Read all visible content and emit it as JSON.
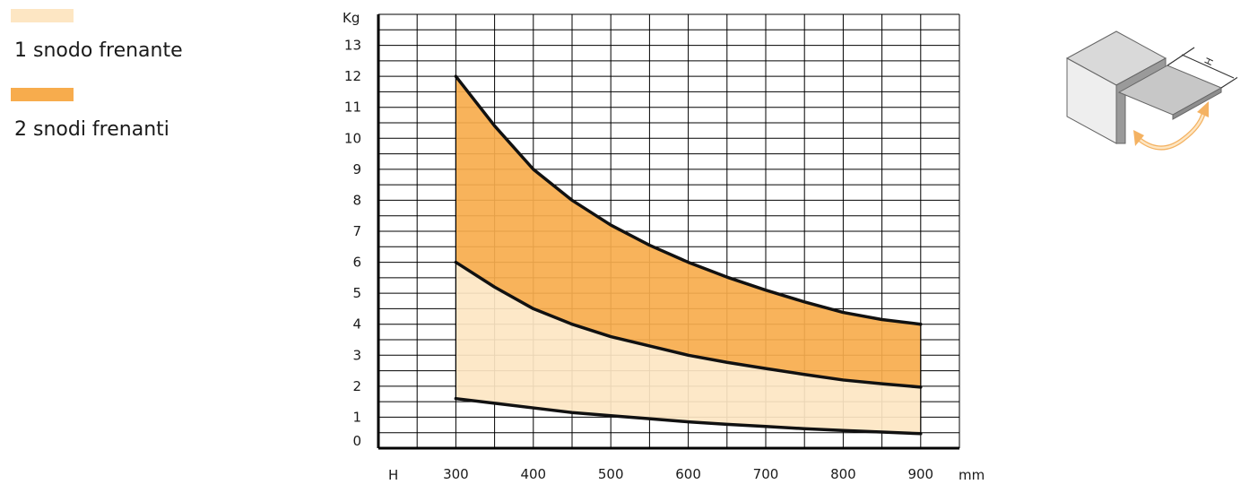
{
  "legend": {
    "items": [
      {
        "label": "1 snodo frenante",
        "color": "#fde6c3"
      },
      {
        "label": "2 snodi frenanti",
        "color": "#f7ac4d"
      }
    ]
  },
  "diagram": {
    "icon": "flap-door-h-dimension-icon",
    "h_label": "H"
  },
  "chart_data": {
    "type": "area",
    "xlabel": "H",
    "x_unit": "mm",
    "ylabel": "Kg",
    "xlim": [
      200,
      950
    ],
    "ylim": [
      0,
      14
    ],
    "x_ticks": [
      300,
      400,
      500,
      600,
      700,
      800,
      900
    ],
    "y_ticks": [
      0,
      1,
      2,
      3,
      4,
      5,
      6,
      7,
      8,
      9,
      10,
      11,
      12,
      13
    ],
    "grid": true,
    "legend_position": "top-left",
    "x": [
      300,
      350,
      400,
      450,
      500,
      550,
      600,
      650,
      700,
      750,
      800,
      850,
      900
    ],
    "series": [
      {
        "name": "1 snodo frenante",
        "color": "#fde6c3",
        "lower": [
          1.6,
          1.45,
          1.3,
          1.15,
          1.05,
          0.95,
          0.85,
          0.77,
          0.7,
          0.63,
          0.57,
          0.52,
          0.47
        ],
        "upper": [
          6.0,
          5.2,
          4.5,
          4.0,
          3.6,
          3.3,
          3.0,
          2.77,
          2.57,
          2.38,
          2.2,
          2.08,
          1.97
        ]
      },
      {
        "name": "2 snodi frenanti",
        "color": "#f7ac4d",
        "lower": [
          6.0,
          5.2,
          4.5,
          4.0,
          3.6,
          3.3,
          3.0,
          2.77,
          2.57,
          2.38,
          2.2,
          2.08,
          1.97
        ],
        "upper": [
          12.0,
          10.4,
          9.0,
          8.0,
          7.2,
          6.55,
          6.0,
          5.52,
          5.1,
          4.72,
          4.38,
          4.15,
          4.0
        ]
      }
    ]
  }
}
